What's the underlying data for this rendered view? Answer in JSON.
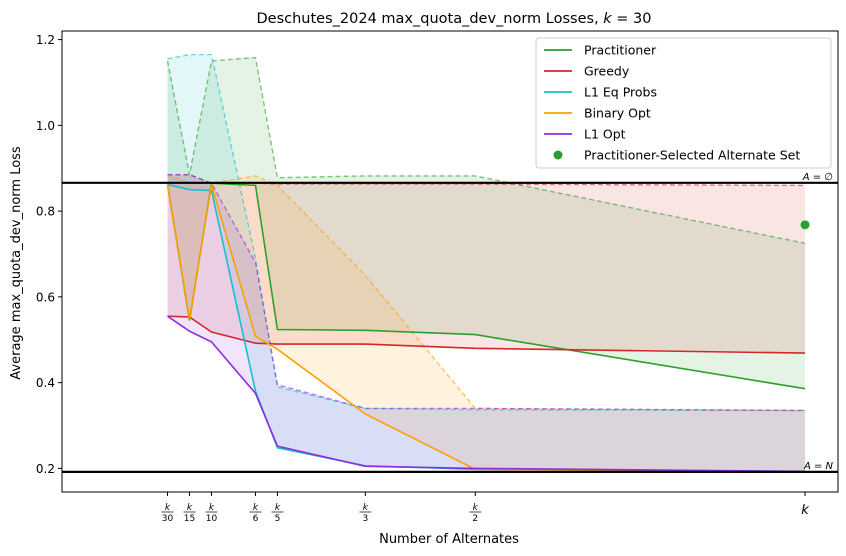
{
  "chart_data": {
    "type": "line",
    "title": "Deschutes_2024 max_quota_dev_norm Losses, k = 30",
    "title_main": "Deschutes_2024 max_quota_dev_norm Losses, ",
    "title_k": "k",
    "title_eq": " = 30",
    "xlabel": "Number of Alternates",
    "ylabel": "Average max_quota_dev_norm Loss",
    "ylim": [
      0.145,
      1.22
    ],
    "xlim": [
      -3.8,
      31.5
    ],
    "yticks": [
      0.2,
      0.4,
      0.6,
      0.8,
      1.0,
      1.2
    ],
    "ytick_labels": [
      "0.2",
      "0.4",
      "0.6",
      "0.8",
      "1.0",
      "1.2"
    ],
    "xticks": [
      {
        "x": 1,
        "num": "k",
        "den": "30"
      },
      {
        "x": 2,
        "num": "k",
        "den": "15"
      },
      {
        "x": 3,
        "num": "k",
        "den": "10"
      },
      {
        "x": 5,
        "num": "k",
        "den": "6"
      },
      {
        "x": 6,
        "num": "k",
        "den": "5"
      },
      {
        "x": 10,
        "num": "k",
        "den": "3"
      },
      {
        "x": 15,
        "num": "k",
        "den": "2"
      },
      {
        "x": 30,
        "num": "k",
        "den": ""
      }
    ],
    "x": [
      1,
      2,
      3,
      5,
      6,
      10,
      15,
      30
    ],
    "hlines": [
      {
        "y": 0.866,
        "label": "A = ∅"
      },
      {
        "y": 0.192,
        "label": "A = N"
      }
    ],
    "legend_position": "top-right",
    "series": [
      {
        "name": "Practitioner",
        "color": "#2ca02c",
        "values": [
          0.862,
          0.545,
          0.865,
          0.86,
          0.524,
          0.522,
          0.512,
          0.386
        ],
        "upper": [
          1.15,
          0.885,
          1.15,
          1.158,
          0.878,
          0.882,
          0.882,
          0.725
        ]
      },
      {
        "name": "Greedy",
        "color": "#d62728",
        "values": [
          0.555,
          0.553,
          0.518,
          0.492,
          0.49,
          0.49,
          0.48,
          0.469
        ],
        "upper": [
          0.885,
          0.885,
          0.865,
          0.865,
          0.863,
          0.863,
          0.863,
          0.86
        ]
      },
      {
        "name": "L1 Eq Probs",
        "color": "#17becf",
        "values": [
          0.862,
          0.85,
          0.848,
          0.38,
          0.248,
          0.206,
          0.198,
          0.193
        ],
        "upper": [
          1.155,
          1.165,
          1.165,
          0.69,
          0.39,
          0.34,
          0.337,
          0.335
        ]
      },
      {
        "name": "Binary Opt",
        "color": "#ff9f00",
        "values": [
          0.862,
          0.548,
          0.862,
          0.508,
          0.478,
          0.327,
          0.198,
          0.192
        ],
        "upper": [
          0.885,
          0.865,
          0.865,
          0.882,
          0.86,
          0.65,
          0.34,
          0.335
        ]
      },
      {
        "name": "L1 Opt",
        "color": "#8f2be2",
        "values": [
          0.555,
          0.52,
          0.495,
          0.375,
          0.252,
          0.205,
          0.2,
          0.193
        ],
        "upper": [
          0.885,
          0.885,
          0.865,
          0.68,
          0.395,
          0.34,
          0.34,
          0.335
        ]
      }
    ],
    "scatter": [
      {
        "name": "Practitioner-Selected Alternate Set",
        "color": "#2ca02c",
        "x": 30,
        "y": 0.768
      }
    ]
  }
}
